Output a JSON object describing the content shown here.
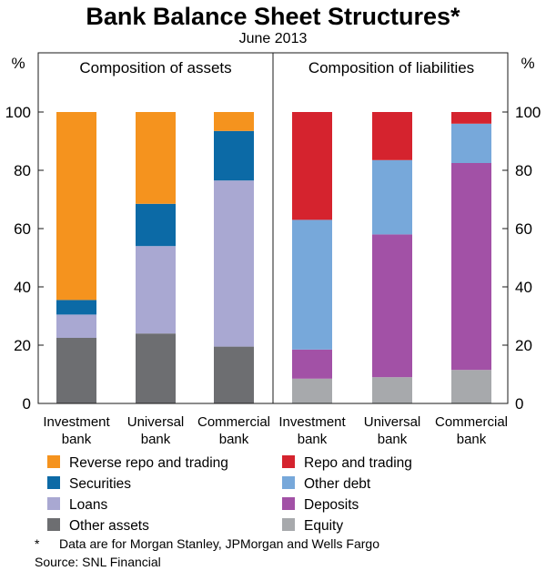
{
  "chart_data": {
    "type": "bar",
    "stacked": true,
    "title": "Bank Balance Sheet Structures*",
    "subtitle": "June 2013",
    "ylabel_left": "%",
    "ylabel_right": "%",
    "ylim": [
      0,
      100
    ],
    "yticks": [
      0,
      20,
      40,
      60,
      80,
      100
    ],
    "grid": false,
    "panels": [
      {
        "title": "Composition of assets",
        "categories": [
          [
            "Investment",
            "bank"
          ],
          [
            "Universal",
            "bank"
          ],
          [
            "Commercial",
            "bank"
          ]
        ],
        "series": [
          {
            "name": "Other assets",
            "color": "#6d6e71",
            "values": [
              22.5,
              24,
              19.5
            ]
          },
          {
            "name": "Loans",
            "color": "#a9a8d2",
            "values": [
              8,
              30,
              57
            ]
          },
          {
            "name": "Securities",
            "color": "#0c6aa6",
            "values": [
              5,
              14.5,
              17
            ]
          },
          {
            "name": "Reverse repo and trading",
            "color": "#f5931e",
            "values": [
              64.5,
              31.5,
              6.5
            ]
          }
        ]
      },
      {
        "title": "Composition of liabilities",
        "categories": [
          [
            "Investment",
            "bank"
          ],
          [
            "Universal",
            "bank"
          ],
          [
            "Commercial",
            "bank"
          ]
        ],
        "series": [
          {
            "name": "Equity",
            "color": "#a7a9ac",
            "values": [
              8.5,
              9,
              11.5
            ]
          },
          {
            "name": "Deposits",
            "color": "#a251a6",
            "values": [
              10,
              49,
              71
            ]
          },
          {
            "name": "Other debt",
            "color": "#77a8da",
            "values": [
              44.5,
              25.5,
              13.5
            ]
          },
          {
            "name": "Repo and trading",
            "color": "#d5232e",
            "values": [
              37,
              16.5,
              4
            ]
          }
        ]
      }
    ],
    "legend": [
      [
        "Reverse repo and trading",
        "Repo and trading"
      ],
      [
        "Securities",
        "Other debt"
      ],
      [
        "Loans",
        "Deposits"
      ],
      [
        "Other assets",
        "Equity"
      ]
    ],
    "footnote": "Data are for Morgan Stanley, JPMorgan and Wells Fargo",
    "footnote_marker": "*",
    "source": "Source: SNL Financial"
  }
}
